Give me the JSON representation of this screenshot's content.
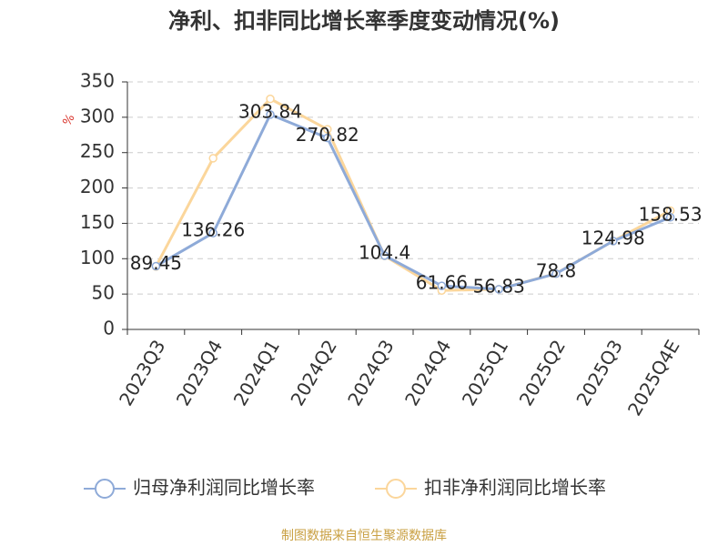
{
  "chart_data": {
    "type": "line",
    "title": "净利、扣非同比增长率季度变动情况(%)",
    "y_label": "%",
    "source": "制图数据来自恒生聚源数据库",
    "categories": [
      "2023Q3",
      "2023Q4",
      "2024Q1",
      "2024Q2",
      "2024Q3",
      "2024Q4",
      "2025Q1",
      "2025Q2",
      "2025Q3",
      "2025Q4E"
    ],
    "series": [
      {
        "name": "归母净利润同比增长率",
        "color": "#8eaad8",
        "values": [
          89.45,
          136.26,
          303.84,
          270.82,
          104.4,
          61.66,
          56.83,
          78.8,
          124.98,
          158.53
        ]
      },
      {
        "name": "扣非净利润同比增长率",
        "color": "#fbd69b",
        "values": [
          89,
          242,
          326,
          283,
          104,
          55,
          57,
          79,
          125,
          168
        ]
      }
    ],
    "ylim": [
      0,
      350
    ],
    "yticks": [
      0,
      50,
      100,
      150,
      200,
      250,
      300,
      350
    ],
    "grid": true
  }
}
